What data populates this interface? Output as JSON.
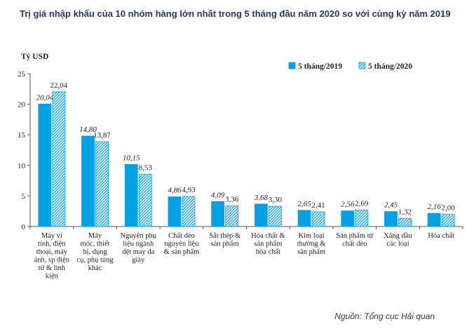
{
  "chart_data": {
    "type": "bar",
    "title": "Trị giá nhập khẩu của 10 nhóm hàng lớn nhất trong 5 tháng đầu năm 2020 so với cùng kỳ năm 2019",
    "ylabel": "Tỷ USD",
    "xlabel": "",
    "ylim": [
      0,
      25
    ],
    "yticks": [
      0,
      5,
      10,
      15,
      20,
      25
    ],
    "categories": [
      [
        "Máy vi",
        "tính, điện",
        "thoại, máy",
        "ảnh, sp điện",
        "tử & linh",
        "kiện"
      ],
      [
        "Máy",
        "móc, thiết",
        "bị, dụng",
        "cụ, phụ tùng",
        "khác"
      ],
      [
        "Nguyên phụ",
        "liệu ngành",
        "dệt may da",
        "giày"
      ],
      [
        "Chất dẻo",
        "nguyên liệu",
        "& sản phẩm"
      ],
      [
        "Sắt thép &",
        "sản phẩm"
      ],
      [
        "Hóa chất &",
        "sản phẩm",
        "hóa chất"
      ],
      [
        "Kim loại",
        "thường &",
        "sản phẩm"
      ],
      [
        "Sản phẩm từ",
        "chất dẻo"
      ],
      [
        "Xăng dầu",
        "các loại"
      ],
      [
        "Hóa chất"
      ]
    ],
    "series": [
      {
        "name": "5 tháng/2019",
        "values": [
          20.04,
          14.8,
          10.15,
          4.86,
          4.09,
          3.68,
          2.65,
          2.56,
          2.45,
          2.16
        ],
        "labels": [
          "20,04",
          "14,80",
          "10,15",
          "4,86",
          "4,09",
          "3,68",
          "2,65",
          "2,56",
          "2,45",
          "2,16"
        ],
        "color": "#00a0e3",
        "pattern": "solid"
      },
      {
        "name": "5 tháng/2020",
        "values": [
          22.04,
          13.87,
          8.53,
          4.93,
          3.36,
          3.3,
          2.41,
          2.69,
          1.32,
          2.0
        ],
        "labels": [
          "22,04",
          "13,87",
          "8,53",
          "4,93",
          "3,36",
          "3,30",
          "2,41",
          "2,69",
          "1,32",
          "2,00"
        ],
        "color": "#00a0e3",
        "pattern": "hatch"
      }
    ],
    "legend_position": "top-right",
    "grid": false
  },
  "source": "Nguồn: Tổng cục Hải quan"
}
